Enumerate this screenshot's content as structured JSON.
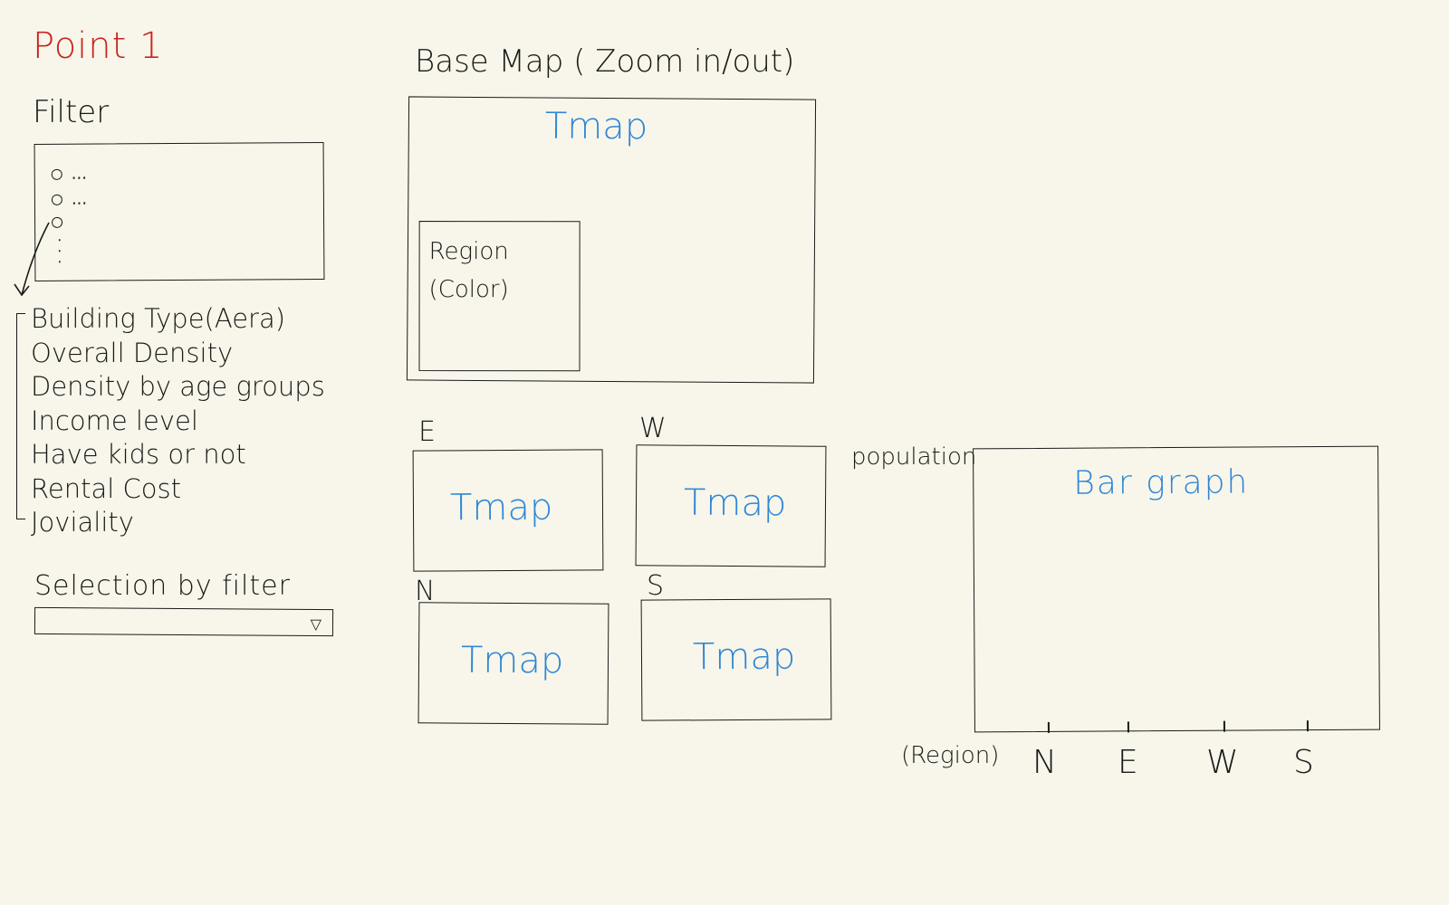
{
  "title": "Point 1",
  "filter": {
    "heading": "Filter",
    "radio_rows": [
      "...",
      "...",
      ""
    ],
    "options": [
      "Building Type(Aera)",
      "Overall Density",
      "Density by age groups",
      "Income level",
      "Have kids or not",
      "Rental Cost",
      "Joviality"
    ]
  },
  "selection": {
    "label": "Selection by filter",
    "value": "",
    "arrow": "▽"
  },
  "basemap": {
    "label": "Base Map ( Zoom in/out)",
    "map_text": "Tmap",
    "region_line1": "Region",
    "region_line2": "(Color)"
  },
  "regions": [
    {
      "label": "E",
      "map_text": "Tmap"
    },
    {
      "label": "W",
      "map_text": "Tmap"
    },
    {
      "label": "N",
      "map_text": "Tmap"
    },
    {
      "label": "S",
      "map_text": "Tmap"
    }
  ],
  "chart": {
    "ylabel": "population",
    "title": "Bar graph",
    "xlabel": "(Region)",
    "categories": [
      "N",
      "E",
      "W",
      "S"
    ]
  },
  "colors": {
    "title": "#c8251f",
    "annotation": "#2f86d6",
    "ink": "#1a1a1a",
    "paper": "#f8f6ea"
  }
}
